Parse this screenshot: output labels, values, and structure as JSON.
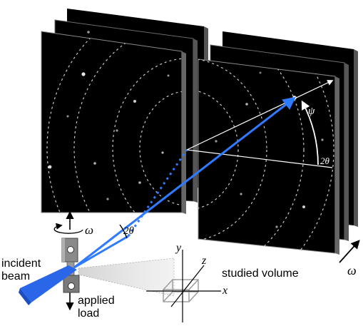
{
  "labels": {
    "incident_beam_line1": "incident",
    "incident_beam_line2": "beam",
    "applied_load_line1": "applied",
    "applied_load_line2": "load",
    "studied_volume": "studied volume",
    "omega_sample": "ω",
    "omega_detector": "ω",
    "two_theta_sample": "2θ",
    "two_theta_detector": "2θ",
    "psi": "ψ",
    "axis_x": "x",
    "axis_y": "y",
    "axis_z": "z"
  },
  "colors": {
    "beam": "#1f5fe0",
    "beam_light": "#2f7bff",
    "detector": "#000000",
    "detector_edge": "#3a3a3a",
    "ring": "#c8c8c8",
    "sample_holder": "#7a7a7a",
    "specimen": "#2a66e8",
    "annotation": "#ffffff"
  },
  "icons": {
    "detector_panel": "diffraction-pattern-icon",
    "sample_holder": "grip-icon"
  }
}
